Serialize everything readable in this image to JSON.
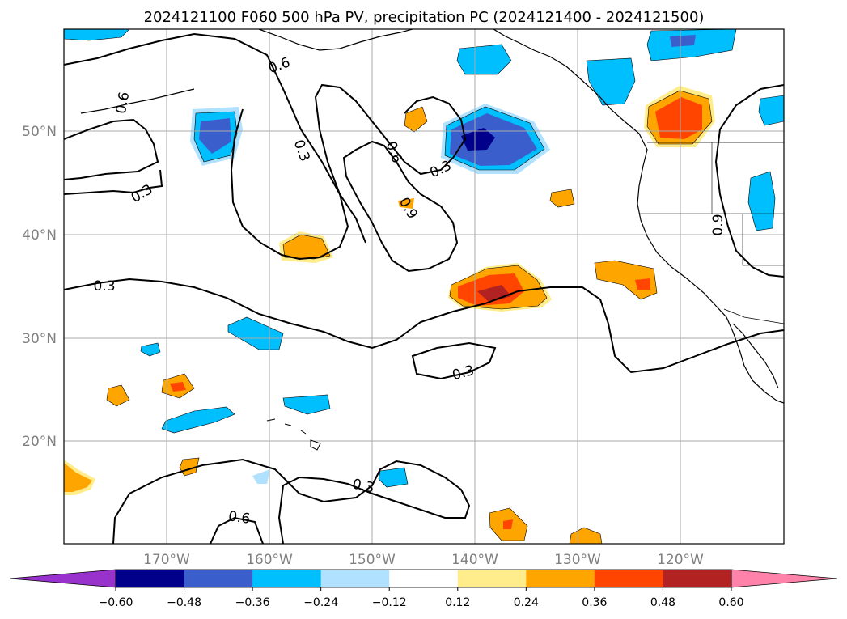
{
  "title": "2024121100 F060 500 hPa PV, precipitation PC (2024121400 - 2024121500)",
  "map": {
    "lat_labels": [
      "50°N",
      "40°N",
      "30°N",
      "20°N"
    ],
    "lon_labels": [
      "170°W",
      "160°W",
      "150°W",
      "140°W",
      "130°W",
      "120°W"
    ],
    "contour_labels": [
      "0.6",
      "0.6",
      "0.3",
      "0.6",
      "0.3",
      "0.9",
      "0.9",
      "0.3",
      "0.3",
      "0.3",
      "0.6"
    ]
  },
  "colorbar": {
    "tick_labels": [
      "−0.60",
      "−0.48",
      "−0.36",
      "−0.24",
      "−0.12",
      "0.12",
      "0.24",
      "0.36",
      "0.48",
      "0.60"
    ],
    "colors": [
      "#9932cc",
      "#00008b",
      "#3a5fcd",
      "#00bfff",
      "#b0e2ff",
      "#ffffff",
      "#ffec8b",
      "#ffa500",
      "#ff4500",
      "#b22222",
      "#ff82ab"
    ]
  }
}
